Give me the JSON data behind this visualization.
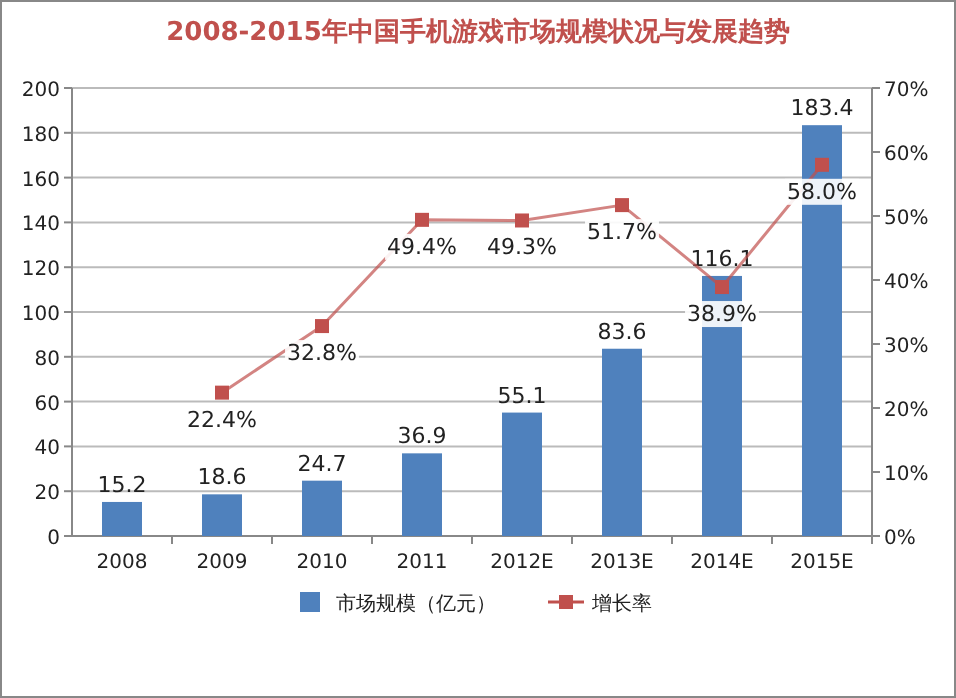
{
  "chart_data": {
    "type": "bar",
    "title": "2008-2015年中国手机游戏市场规模状况与发展趋势",
    "categories": [
      "2008",
      "2009",
      "2010",
      "2011",
      "2012E",
      "2013E",
      "2014E",
      "2015E"
    ],
    "series": [
      {
        "name": "市场规模（亿元）",
        "color": "#4f81bd",
        "values": [
          15.2,
          18.6,
          24.7,
          36.9,
          55.1,
          83.6,
          116.1,
          183.4
        ],
        "data_labels": true
      },
      {
        "name": "增长率",
        "type": "line",
        "axis": "y2",
        "color": "#c0504d",
        "marker": "square",
        "values": [
          null,
          22.4,
          32.8,
          49.4,
          49.3,
          51.7,
          38.9,
          58.0
        ],
        "value_labels": [
          null,
          "22.4%",
          "32.8%",
          "49.4%",
          "49.3%",
          "51.7%",
          "38.9%",
          "58.0%"
        ]
      }
    ],
    "ylim": [
      0,
      200
    ],
    "yticks": [
      0,
      20,
      40,
      60,
      80,
      100,
      120,
      140,
      160,
      180,
      200
    ],
    "y2lim": [
      0,
      70
    ],
    "y2ticks": [
      {
        "value": 0,
        "label": "0%"
      },
      {
        "value": 10,
        "label": "10%"
      },
      {
        "value": 20,
        "label": "20%"
      },
      {
        "value": 30,
        "label": "30%"
      },
      {
        "value": 40,
        "label": "40%"
      },
      {
        "value": 50,
        "label": "50%"
      },
      {
        "value": 60,
        "label": "60%"
      },
      {
        "value": 70,
        "label": "70%"
      }
    ],
    "grid": "y",
    "legend": "bottom"
  }
}
